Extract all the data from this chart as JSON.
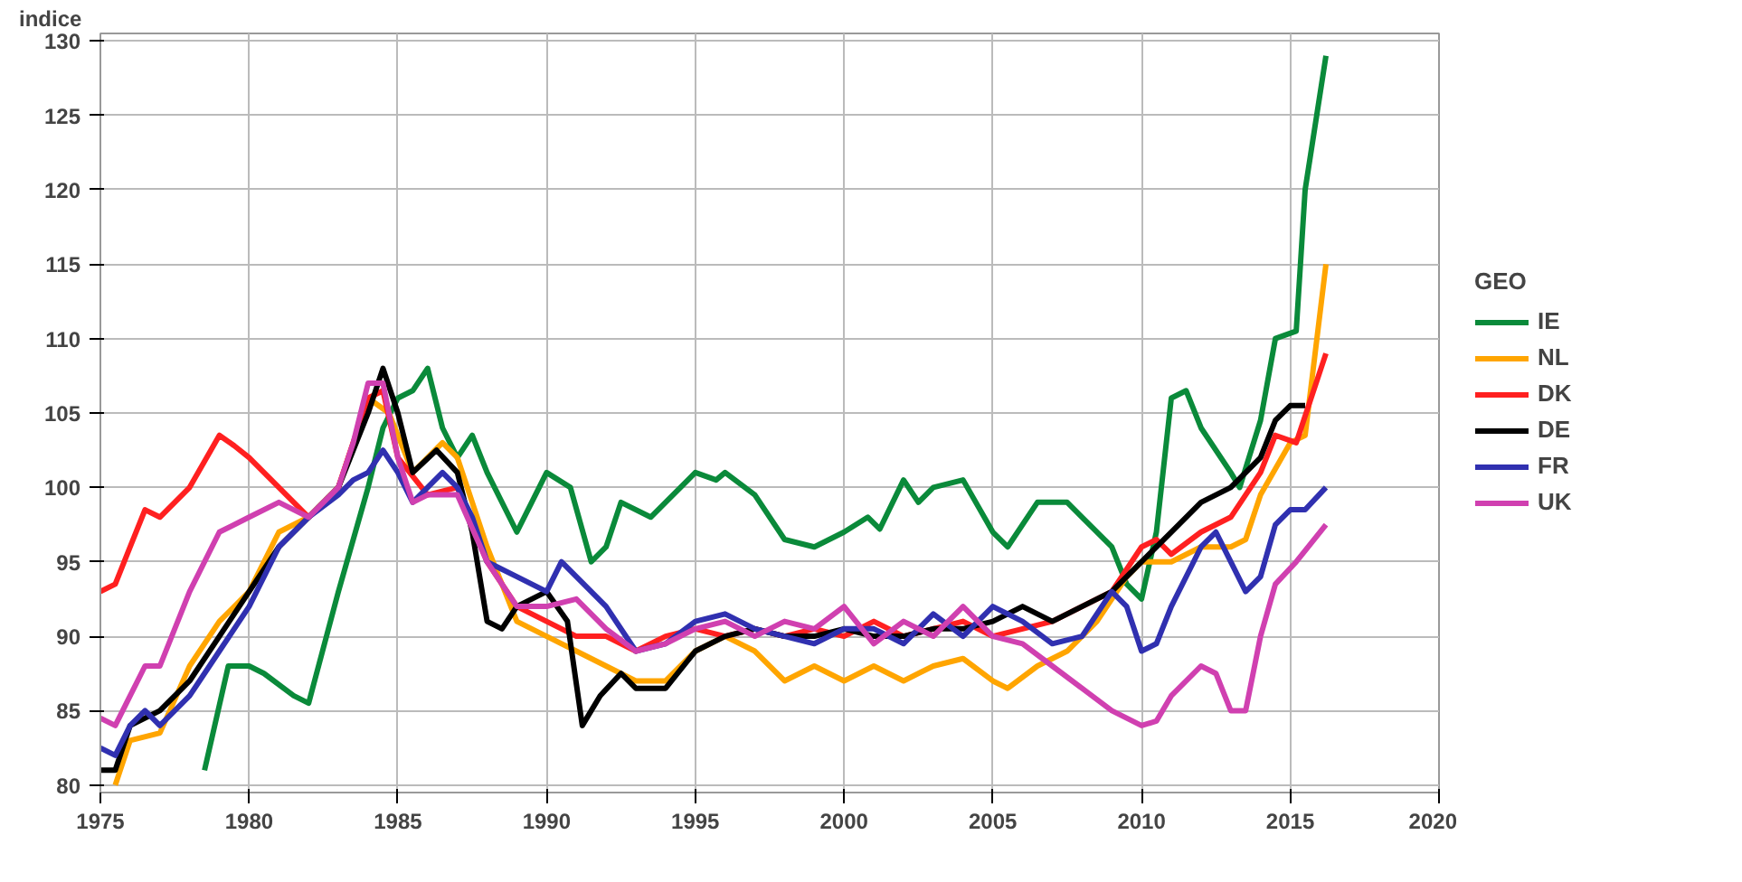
{
  "chart_data": {
    "type": "line",
    "ylabel": "indice",
    "legend_title": "GEO",
    "legend": "right",
    "grid": true,
    "marker": "none",
    "line_style": "solid",
    "xlim": [
      1975,
      2020
    ],
    "xticks": [
      1975,
      1980,
      1985,
      1990,
      1995,
      2000,
      2005,
      2010,
      2015,
      2020
    ],
    "ylim": [
      79.5,
      130.5
    ],
    "yticks": [
      80,
      85,
      90,
      95,
      100,
      105,
      110,
      115,
      120,
      125,
      130
    ],
    "series": [
      {
        "name": "IE",
        "color": "#0a8a3a",
        "x": [
          1978.5,
          1979.3,
          1980,
          1980.5,
          1981.5,
          1982,
          1983,
          1984,
          1984.5,
          1985,
          1985.5,
          1986,
          1986.5,
          1987,
          1987.5,
          1988,
          1989,
          1989.5,
          1990,
          1990.8,
          1991.5,
          1992,
          1992.5,
          1993.5,
          1994,
          1995,
          1995.7,
          1996,
          1997,
          1998,
          1999,
          2000,
          2000.8,
          2001.2,
          2002,
          2002.5,
          2003,
          2004,
          2005,
          2005.5,
          2006.5,
          2007.5,
          2008,
          2009,
          2009.5,
          2010,
          2010.5,
          2011,
          2011.5,
          2012,
          2013,
          2013.3,
          2014,
          2014.5,
          2015.2,
          2015.5,
          2016.2
        ],
        "values": [
          81,
          88,
          88,
          87.5,
          86,
          85.5,
          93,
          100,
          104,
          106,
          106.5,
          108,
          104,
          102,
          103.5,
          101,
          97,
          99,
          101,
          100,
          95,
          96,
          99,
          98,
          99,
          101,
          100.5,
          101,
          99.5,
          96.5,
          96,
          97,
          98,
          97.2,
          100.5,
          99,
          100,
          100.5,
          97,
          96,
          99,
          99,
          98,
          96,
          93.5,
          92.5,
          97,
          106,
          106.5,
          104,
          101,
          100,
          104.5,
          110,
          110.5,
          120,
          129
        ]
      },
      {
        "name": "NL",
        "color": "#ffa500",
        "x": [
          1975.5,
          1976,
          1977,
          1978,
          1979,
          1980,
          1981,
          1982,
          1983,
          1984,
          1984.7,
          1985.5,
          1986.5,
          1987,
          1988,
          1989,
          1990,
          1991,
          1992,
          1993,
          1994,
          1995,
          1996,
          1997,
          1998,
          1999,
          2000,
          2001,
          2002,
          2003,
          2004,
          2005,
          2005.5,
          2006.5,
          2007.5,
          2008.5,
          2009.5,
          2010,
          2011,
          2012,
          2013,
          2013.5,
          2014,
          2015,
          2015.5,
          2016.2
        ],
        "values": [
          80,
          83,
          83.5,
          88,
          91,
          93,
          97,
          98,
          100,
          106,
          105,
          101,
          103,
          102,
          96,
          91,
          90,
          89,
          88,
          87,
          87,
          89,
          90,
          89,
          87,
          88,
          87,
          88,
          87,
          88,
          88.5,
          87,
          86.5,
          88,
          89,
          91,
          94,
          95,
          95,
          96,
          96,
          96.5,
          99.5,
          103,
          103.5,
          115
        ]
      },
      {
        "name": "DK",
        "color": "#ff2020",
        "x": [
          1975,
          1975.5,
          1976,
          1976.5,
          1977,
          1978,
          1979,
          1979.5,
          1980,
          1981,
          1982,
          1983,
          1984,
          1984.5,
          1985,
          1986,
          1987,
          1988,
          1989,
          1990,
          1991,
          1992,
          1993,
          1994,
          1995,
          1996,
          1997,
          1998,
          1999,
          2000,
          2001,
          2002,
          2003,
          2004,
          2005,
          2006,
          2007,
          2008,
          2009,
          2010,
          2010.5,
          2011,
          2012,
          2013,
          2014,
          2014.5,
          2015.2,
          2016.2
        ],
        "values": [
          93,
          93.5,
          96,
          98.5,
          98,
          100,
          103.5,
          102.8,
          102,
          100,
          98,
          100,
          106,
          106.5,
          102,
          99.5,
          100,
          95,
          92,
          91,
          90,
          90,
          89,
          90,
          90.5,
          90,
          90.5,
          90,
          90.5,
          90,
          91,
          90,
          90.5,
          91,
          90,
          90.5,
          91,
          92,
          93,
          96,
          96.5,
          95.5,
          97,
          98,
          101,
          103.5,
          103,
          109
        ]
      },
      {
        "name": "DE",
        "color": "#000000",
        "x": [
          1975,
          1975.5,
          1976,
          1977,
          1978,
          1979,
          1980,
          1981,
          1982,
          1983,
          1984,
          1984.5,
          1985,
          1985.5,
          1986.3,
          1987,
          1987.5,
          1988,
          1988.5,
          1989,
          1990,
          1990.7,
          1991.2,
          1991.8,
          1992.5,
          1993,
          1994,
          1995,
          1996,
          1997,
          1998,
          1999,
          2000,
          2001,
          2002,
          2003,
          2004,
          2005,
          2006,
          2007,
          2008,
          2009,
          2010,
          2011,
          2012,
          2013,
          2014,
          2014.5,
          2015,
          2015.5
        ],
        "values": [
          81,
          81,
          84,
          85,
          87,
          90,
          93,
          96,
          98,
          100,
          105,
          108,
          105,
          101,
          102.5,
          101,
          97,
          91,
          90.5,
          92,
          93,
          91,
          84,
          86,
          87.5,
          86.5,
          86.5,
          89,
          90,
          90.5,
          90,
          90,
          90.5,
          90,
          90,
          90.5,
          90.5,
          91,
          92,
          91,
          92,
          93,
          95,
          97,
          99,
          100,
          102,
          104.5,
          105.5,
          105.5
        ]
      },
      {
        "name": "FR",
        "color": "#3030b0",
        "x": [
          1975,
          1975.5,
          1976,
          1976.5,
          1977,
          1978,
          1979,
          1980,
          1981,
          1982,
          1983,
          1983.5,
          1984,
          1984.5,
          1985,
          1985.5,
          1986,
          1986.5,
          1987,
          1987.5,
          1988,
          1989,
          1990,
          1990.5,
          1991,
          1992,
          1993,
          1994,
          1995,
          1996,
          1997,
          1998,
          1999,
          2000,
          2001,
          2002,
          2003,
          2004,
          2005,
          2006,
          2007,
          2008,
          2009,
          2009.5,
          2010,
          2010.5,
          2011,
          2012,
          2012.5,
          2013,
          2013.5,
          2014,
          2014.5,
          2015,
          2015.5,
          2016.2
        ],
        "values": [
          82.5,
          82,
          84,
          85,
          84,
          86,
          89,
          92,
          96,
          98,
          99.5,
          100.5,
          101,
          102.5,
          101,
          99,
          100,
          101,
          100,
          98,
          95,
          94,
          93,
          95,
          94,
          92,
          89,
          89.5,
          91,
          91.5,
          90.5,
          90,
          89.5,
          90.5,
          90.5,
          89.5,
          91.5,
          90,
          92,
          91,
          89.5,
          90,
          93,
          92,
          89,
          89.5,
          92,
          96,
          97,
          95,
          93,
          94,
          97.5,
          98.5,
          98.5,
          100
        ]
      },
      {
        "name": "UK",
        "color": "#d040b0",
        "x": [
          1975,
          1975.5,
          1976,
          1976.5,
          1977,
          1978,
          1979,
          1980,
          1981,
          1981.5,
          1982,
          1983,
          1983.5,
          1984,
          1984.5,
          1985,
          1985.5,
          1986,
          1987,
          1988,
          1989,
          1990,
          1991,
          1992,
          1993,
          1994,
          1995,
          1996,
          1997,
          1998,
          1999,
          2000,
          2001,
          2002,
          2003,
          2004,
          2005,
          2006,
          2007,
          2008,
          2009,
          2010,
          2010.5,
          2011,
          2012,
          2012.5,
          2013,
          2013.5,
          2014,
          2014.5,
          2015.2,
          2016.2
        ],
        "values": [
          84.5,
          84,
          86,
          88,
          88,
          93,
          97,
          98,
          99,
          98.5,
          98,
          100,
          103,
          107,
          107,
          102,
          99,
          99.5,
          99.5,
          95,
          92,
          92,
          92.5,
          90.5,
          89,
          89.5,
          90.5,
          91,
          90,
          91,
          90.5,
          92,
          89.5,
          91,
          90,
          92,
          90,
          89.5,
          88,
          86.5,
          85,
          84,
          84.3,
          86,
          88,
          87.5,
          85,
          85,
          90,
          93.5,
          95,
          97.5
        ]
      }
    ]
  }
}
